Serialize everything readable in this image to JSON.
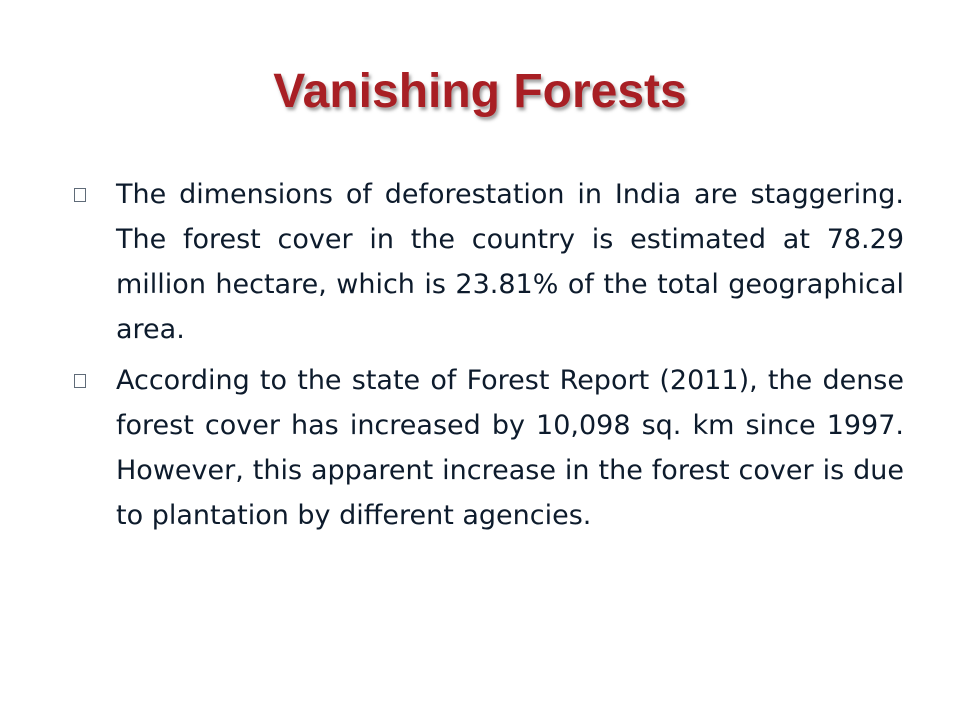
{
  "slide": {
    "title": "Vanishing Forests",
    "bullets": [
      {
        "icon": "square-bullet-icon",
        "text": "The dimensions of deforestation in India are staggering. The forest cover in the country is estimated at 78.29 million hectare, which is 23.81% of the total geographical area."
      },
      {
        "icon": "square-bullet-icon",
        "text": "According to the state of Forest Report (2011), the dense forest cover has increased by 10,098 sq. km since 1997. However, this apparent increase in the forest cover is due to plantation by different agencies."
      }
    ],
    "colors": {
      "title": "#a81f24",
      "body_text": "#0d1b2c",
      "background": "#ffffff"
    }
  }
}
